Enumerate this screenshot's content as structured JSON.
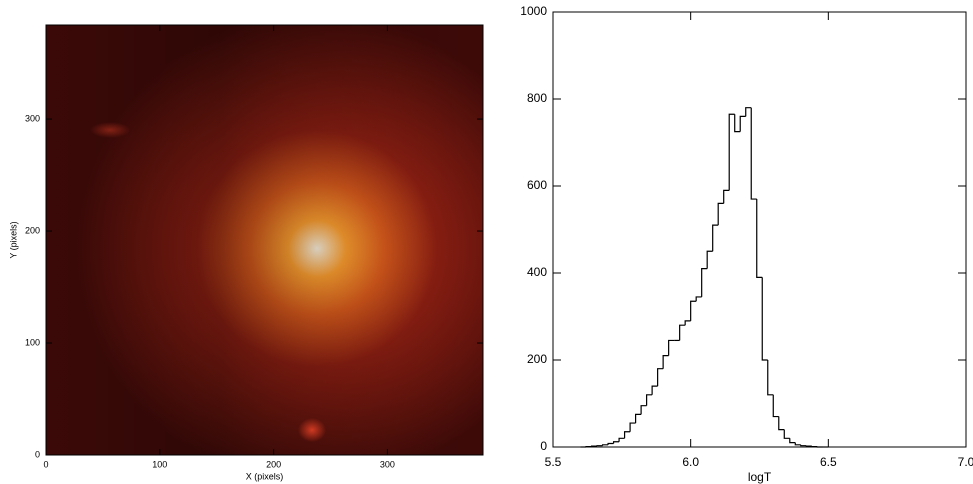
{
  "chart_data": [
    {
      "type": "image",
      "xlabel": "X (pixels)",
      "ylabel": "Y (pixels)",
      "xlim": [
        0,
        384
      ],
      "ylim": [
        0,
        384
      ],
      "xticks": [
        0,
        100,
        200,
        300
      ],
      "yticks": [
        0,
        100,
        200,
        300
      ]
    },
    {
      "type": "histogram",
      "xlabel": "logT",
      "color": "#000000",
      "bins": [
        5.6,
        5.62,
        5.64,
        5.66,
        5.68,
        5.7,
        5.72,
        5.74,
        5.76,
        5.78,
        5.8,
        5.82,
        5.84,
        5.86,
        5.88,
        5.9,
        5.92,
        5.94,
        5.96,
        5.98,
        6.0,
        6.02,
        6.04,
        6.06,
        6.08,
        6.1,
        6.12,
        6.14,
        6.16,
        6.18,
        6.2,
        6.22,
        6.24,
        6.26,
        6.28,
        6.3,
        6.32,
        6.34,
        6.36,
        6.38,
        6.4,
        6.42,
        6.44,
        6.46,
        6.48,
        6.5
      ],
      "values": [
        0,
        1,
        2,
        3,
        5,
        8,
        12,
        20,
        35,
        55,
        75,
        95,
        120,
        140,
        180,
        210,
        245,
        245,
        280,
        290,
        335,
        345,
        410,
        450,
        510,
        560,
        590,
        765,
        725,
        760,
        780,
        570,
        390,
        200,
        120,
        70,
        40,
        20,
        10,
        5,
        3,
        2,
        1,
        0,
        0
      ],
      "xlim": [
        5.5,
        7.0
      ],
      "xticks": [
        5.5,
        {
          "value": 6,
          "label": "6.0"
        },
        6.5,
        {
          "value": 7,
          "label": "7.0"
        }
      ],
      "ylim": [
        0,
        1000
      ],
      "yticks": [
        0,
        200,
        400,
        600,
        800,
        1000
      ]
    }
  ]
}
